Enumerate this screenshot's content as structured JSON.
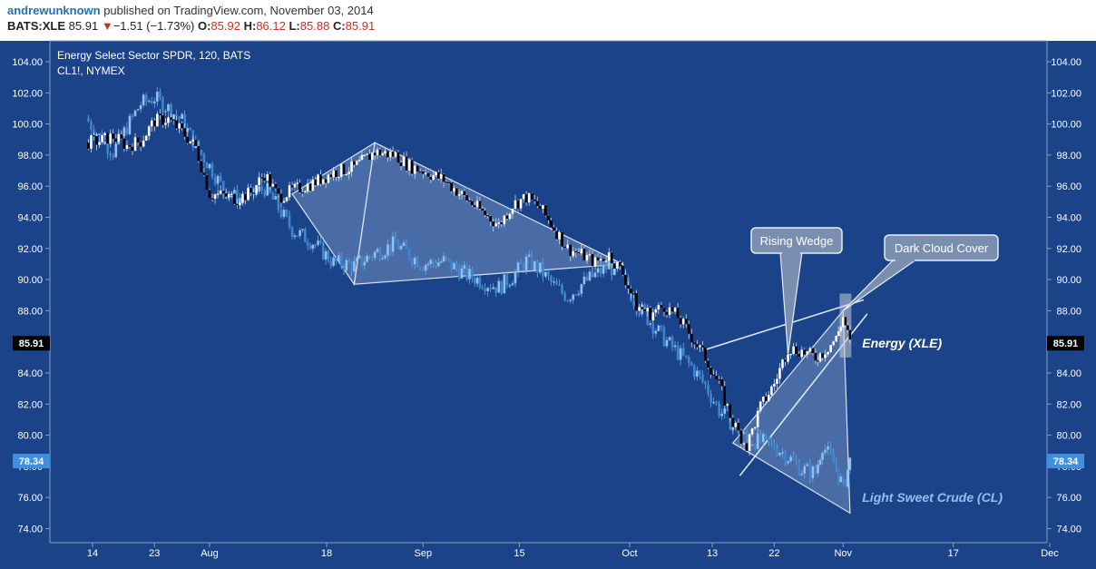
{
  "header": {
    "user": "andrewunknown",
    "published": "published on TradingView.com, November 03, 2014",
    "symbol": "BATS:XLE",
    "last": "85.91",
    "change_arrow": "▼",
    "change": "−1.51 (−1.73%)",
    "o_label": "O:",
    "o_value": "85.92",
    "h_label": "H:",
    "h_value": "86.12",
    "l_label": "L:",
    "l_value": "85.88",
    "c_label": "C:",
    "c_value": "85.91"
  },
  "chart_data": {
    "type": "candlestick",
    "title": "Energy Select Sector SPDR, 120, BATS",
    "subtitle": "CL1!, NYMEX",
    "y_ticks": [
      74,
      76,
      78,
      80,
      82,
      84,
      86,
      88,
      90,
      92,
      94,
      96,
      98,
      100,
      102,
      104
    ],
    "ylim": [
      73.3,
      105.0
    ],
    "x_ticks": [
      {
        "label": "14",
        "day": -17
      },
      {
        "label": "23",
        "day": -8
      },
      {
        "label": "Aug",
        "day": 0
      },
      {
        "label": "18",
        "day": 17
      },
      {
        "label": "Sep",
        "day": 31
      },
      {
        "label": "15",
        "day": 45
      },
      {
        "label": "Oct",
        "day": 61
      },
      {
        "label": "13",
        "day": 73
      },
      {
        "label": "22",
        "day": 82
      },
      {
        "label": "Nov",
        "day": 92
      },
      {
        "label": "17",
        "day": 108
      },
      {
        "label": "Dec",
        "day": 122
      }
    ],
    "x_axis_note": "day = calendar days since Aug 1, 2014",
    "grid": false,
    "last_price_labels": [
      {
        "value": 85.91,
        "text": "85.91",
        "series": "xle"
      },
      {
        "value": 78.34,
        "text": "78.34",
        "series": "cl"
      }
    ],
    "series": [
      {
        "name": "Energy (XLE)",
        "color_up": "#ffffff",
        "color_down": "#000000",
        "points": [
          {
            "day": -18,
            "value": 98.8
          },
          {
            "day": -16,
            "value": 98.9
          },
          {
            "day": -14,
            "value": 99.2
          },
          {
            "day": -12,
            "value": 98.6
          },
          {
            "day": -10,
            "value": 98.9
          },
          {
            "day": -8,
            "value": 100.2
          },
          {
            "day": -6,
            "value": 100.3
          },
          {
            "day": -4,
            "value": 99.5
          },
          {
            "day": -2,
            "value": 98.5
          },
          {
            "day": 0,
            "value": 95.5
          },
          {
            "day": 2,
            "value": 95.4
          },
          {
            "day": 4,
            "value": 95.2
          },
          {
            "day": 6,
            "value": 95.6
          },
          {
            "day": 8,
            "value": 96.8
          },
          {
            "day": 10,
            "value": 95.3
          },
          {
            "day": 12,
            "value": 95.7
          },
          {
            "day": 15,
            "value": 96.2
          },
          {
            "day": 18,
            "value": 96.9
          },
          {
            "day": 21,
            "value": 97.2
          },
          {
            "day": 24,
            "value": 98.2
          },
          {
            "day": 27,
            "value": 98.0
          },
          {
            "day": 29,
            "value": 97.3
          },
          {
            "day": 31,
            "value": 97.0
          },
          {
            "day": 34,
            "value": 96.4
          },
          {
            "day": 37,
            "value": 95.3
          },
          {
            "day": 40,
            "value": 94.2
          },
          {
            "day": 42,
            "value": 93.5
          },
          {
            "day": 44,
            "value": 94.8
          },
          {
            "day": 46,
            "value": 95.3
          },
          {
            "day": 48,
            "value": 94.6
          },
          {
            "day": 50,
            "value": 93.3
          },
          {
            "day": 52,
            "value": 92.0
          },
          {
            "day": 54,
            "value": 91.6
          },
          {
            "day": 56,
            "value": 91.1
          },
          {
            "day": 58,
            "value": 91.6
          },
          {
            "day": 60,
            "value": 90.4
          },
          {
            "day": 62,
            "value": 88.3
          },
          {
            "day": 64,
            "value": 87.8
          },
          {
            "day": 66,
            "value": 88.3
          },
          {
            "day": 68,
            "value": 87.6
          },
          {
            "day": 70,
            "value": 86.3
          },
          {
            "day": 72,
            "value": 85.0
          },
          {
            "day": 74,
            "value": 83.2
          },
          {
            "day": 76,
            "value": 80.8
          },
          {
            "day": 78,
            "value": 79.3
          },
          {
            "day": 80,
            "value": 81.8
          },
          {
            "day": 82,
            "value": 83.3
          },
          {
            "day": 84,
            "value": 85.6
          },
          {
            "day": 86,
            "value": 85.4
          },
          {
            "day": 88,
            "value": 85.0
          },
          {
            "day": 89,
            "value": 85.3
          },
          {
            "day": 91,
            "value": 86.2
          },
          {
            "day": 92,
            "value": 87.6
          },
          {
            "day": 93,
            "value": 85.91
          }
        ]
      },
      {
        "name": "Light Sweet Crude (CL)",
        "color": "#5aa2e6",
        "points": [
          {
            "day": -18,
            "value": 100.4
          },
          {
            "day": -16,
            "value": 99.2
          },
          {
            "day": -14,
            "value": 98.2
          },
          {
            "day": -12,
            "value": 99.8
          },
          {
            "day": -10,
            "value": 101.3
          },
          {
            "day": -8,
            "value": 101.7
          },
          {
            "day": -6,
            "value": 101.0
          },
          {
            "day": -4,
            "value": 100.2
          },
          {
            "day": -2,
            "value": 98.6
          },
          {
            "day": 0,
            "value": 97.3
          },
          {
            "day": 2,
            "value": 95.8
          },
          {
            "day": 4,
            "value": 95.2
          },
          {
            "day": 6,
            "value": 95.4
          },
          {
            "day": 8,
            "value": 95.9
          },
          {
            "day": 10,
            "value": 94.6
          },
          {
            "day": 12,
            "value": 93.2
          },
          {
            "day": 15,
            "value": 92.4
          },
          {
            "day": 18,
            "value": 91.1
          },
          {
            "day": 21,
            "value": 90.9
          },
          {
            "day": 24,
            "value": 91.7
          },
          {
            "day": 27,
            "value": 92.3
          },
          {
            "day": 29,
            "value": 91.6
          },
          {
            "day": 31,
            "value": 91.0
          },
          {
            "day": 34,
            "value": 91.2
          },
          {
            "day": 37,
            "value": 90.4
          },
          {
            "day": 40,
            "value": 89.8
          },
          {
            "day": 42,
            "value": 89.5
          },
          {
            "day": 44,
            "value": 90.2
          },
          {
            "day": 46,
            "value": 91.2
          },
          {
            "day": 48,
            "value": 90.6
          },
          {
            "day": 50,
            "value": 89.6
          },
          {
            "day": 52,
            "value": 88.9
          },
          {
            "day": 54,
            "value": 89.7
          },
          {
            "day": 56,
            "value": 90.3
          },
          {
            "day": 58,
            "value": 90.9
          },
          {
            "day": 60,
            "value": 90.1
          },
          {
            "day": 62,
            "value": 88.4
          },
          {
            "day": 64,
            "value": 87.3
          },
          {
            "day": 66,
            "value": 86.2
          },
          {
            "day": 68,
            "value": 85.3
          },
          {
            "day": 70,
            "value": 84.4
          },
          {
            "day": 72,
            "value": 83.2
          },
          {
            "day": 74,
            "value": 81.6
          },
          {
            "day": 76,
            "value": 80.7
          },
          {
            "day": 78,
            "value": 79.7
          },
          {
            "day": 80,
            "value": 79.6
          },
          {
            "day": 82,
            "value": 79.3
          },
          {
            "day": 84,
            "value": 78.6
          },
          {
            "day": 86,
            "value": 77.8
          },
          {
            "day": 88,
            "value": 77.6
          },
          {
            "day": 89,
            "value": 79.4
          },
          {
            "day": 91,
            "value": 77.9
          },
          {
            "day": 92,
            "value": 76.6
          },
          {
            "day": 93,
            "value": 78.34
          }
        ]
      }
    ],
    "annotations": [
      {
        "text": "Rising Wedge",
        "type": "callout",
        "target_day": 84,
        "target_value": 85.2
      },
      {
        "text": "Dark Cloud Cover",
        "type": "callout",
        "target_day": 92,
        "target_value": 88.0
      },
      {
        "text": "Energy (XLE)",
        "type": "label",
        "day": 94.5,
        "value": 85.91
      },
      {
        "text": "Light Sweet Crude (CL)",
        "type": "label",
        "day": 94.5,
        "value": 76.0
      }
    ],
    "drawings": [
      {
        "type": "triangle",
        "points": [
          [
            12,
            95.5
          ],
          [
            24,
            98.8
          ],
          [
            21,
            89.7
          ]
        ]
      },
      {
        "type": "triangle",
        "points": [
          [
            24,
            98.8
          ],
          [
            60,
            91.0
          ],
          [
            21,
            89.7
          ]
        ]
      },
      {
        "type": "triangle",
        "points": [
          [
            76,
            79.5
          ],
          [
            92,
            88.0
          ],
          [
            93,
            75.0
          ]
        ]
      },
      {
        "type": "trendline",
        "points": [
          [
            72,
            85.5
          ],
          [
            95,
            88.7
          ]
        ]
      },
      {
        "type": "trendline",
        "points": [
          [
            77,
            77.4
          ],
          [
            95.5,
            87.8
          ]
        ]
      },
      {
        "type": "highlight_box",
        "points": [
          [
            91.5,
            85.0
          ],
          [
            93.2,
            89.1
          ]
        ]
      }
    ]
  }
}
